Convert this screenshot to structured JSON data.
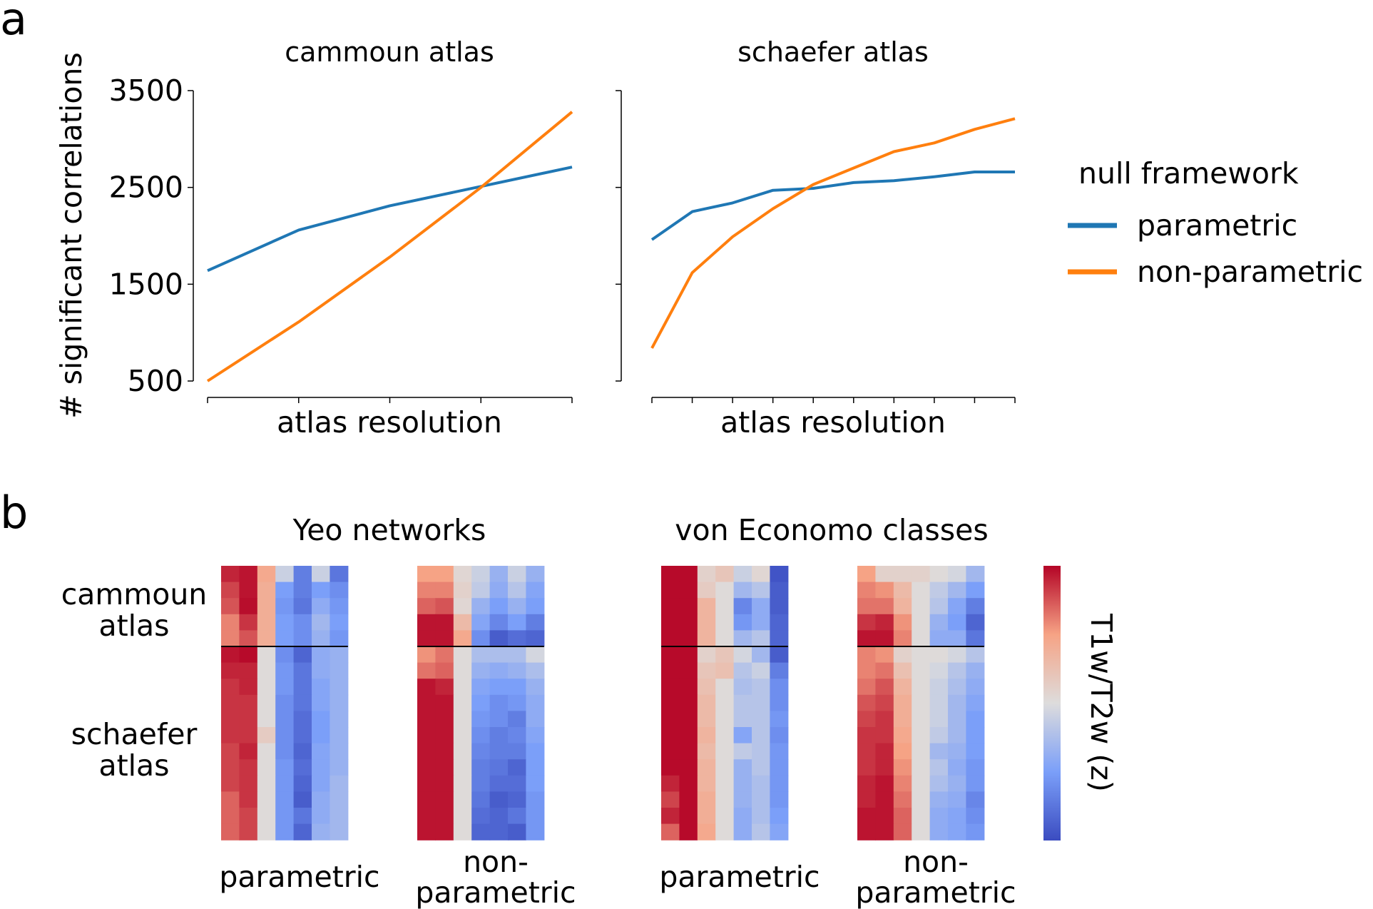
{
  "panel_labels": {
    "a": "a",
    "b": "b"
  },
  "colors": {
    "parametric": "#1f77b4",
    "non_parametric": "#ff7f0e"
  },
  "legend": {
    "title": "null framework",
    "items": [
      {
        "label": "parametric",
        "color": "#1f77b4"
      },
      {
        "label": "non-parametric",
        "color": "#ff7f0e"
      }
    ]
  },
  "heatmap_labels": {
    "section_titles": [
      "Yeo networks",
      "von Economo classes"
    ],
    "row_labels": {
      "cammoun": [
        "cammoun",
        "atlas"
      ],
      "schaefer": [
        "schaefer",
        "atlas"
      ]
    },
    "column_labels": {
      "parametric": [
        "parametric"
      ],
      "non_parametric": [
        "non-",
        "parametric"
      ]
    },
    "colorbar_label": "T1w/T2w (z)"
  },
  "chart_data": [
    {
      "type": "line",
      "title": "cammoun atlas",
      "xlabel": "atlas resolution",
      "ylabel": "# significant correlations",
      "yticks": [
        500,
        1500,
        2500,
        3500
      ],
      "ylim": [
        500,
        3500
      ],
      "x": [
        1,
        2,
        3,
        4,
        5
      ],
      "series": [
        {
          "name": "parametric",
          "values": [
            1640,
            2060,
            2310,
            2510,
            2710
          ]
        },
        {
          "name": "non-parametric",
          "values": [
            500,
            1110,
            1780,
            2500,
            3280
          ]
        }
      ]
    },
    {
      "type": "line",
      "title": "schaefer atlas",
      "xlabel": "atlas resolution",
      "ylabel": "",
      "ylim": [
        500,
        3500
      ],
      "x": [
        1,
        2,
        3,
        4,
        5,
        6,
        7,
        8,
        9,
        10
      ],
      "series": [
        {
          "name": "parametric",
          "values": [
            1960,
            2250,
            2340,
            2470,
            2490,
            2550,
            2570,
            2610,
            2660,
            2660
          ]
        },
        {
          "name": "non-parametric",
          "values": [
            840,
            1620,
            1990,
            2280,
            2530,
            2700,
            2870,
            2960,
            3100,
            3210
          ]
        }
      ]
    },
    {
      "type": "heatmap",
      "title": "Yeo networks",
      "colormap": "coolwarm",
      "groups": [
        {
          "name": "parametric",
          "rows": [
            [
              0.9,
              0.95,
              0.45,
              -0.1,
              -0.7,
              -0.1,
              -0.75
            ],
            [
              0.8,
              0.95,
              0.4,
              -0.5,
              -0.7,
              -0.5,
              -0.6
            ],
            [
              0.75,
              0.97,
              0.4,
              -0.55,
              -0.75,
              -0.4,
              -0.55
            ],
            [
              0.6,
              0.85,
              0.4,
              -0.5,
              -0.6,
              -0.3,
              -0.5
            ],
            [
              0.6,
              0.75,
              0.4,
              -0.5,
              -0.6,
              -0.35,
              -0.55
            ],
            [
              0.95,
              0.98,
              0.02,
              -0.6,
              -0.85,
              -0.4,
              -0.35
            ],
            [
              0.9,
              0.9,
              0.02,
              -0.55,
              -0.75,
              -0.4,
              -0.35
            ],
            [
              0.85,
              0.9,
              0.02,
              -0.55,
              -0.75,
              -0.45,
              -0.35
            ],
            [
              0.85,
              0.85,
              0.02,
              -0.6,
              -0.75,
              -0.45,
              -0.35
            ],
            [
              0.85,
              0.85,
              0.02,
              -0.6,
              -0.8,
              -0.5,
              -0.35
            ],
            [
              0.85,
              0.85,
              0.15,
              -0.6,
              -0.8,
              -0.5,
              -0.35
            ],
            [
              0.8,
              0.9,
              0.02,
              -0.6,
              -0.85,
              -0.45,
              -0.35
            ],
            [
              0.8,
              0.85,
              0.02,
              -0.55,
              -0.8,
              -0.45,
              -0.35
            ],
            [
              0.8,
              0.85,
              0.02,
              -0.55,
              -0.85,
              -0.45,
              -0.3
            ],
            [
              0.7,
              0.85,
              0.02,
              -0.55,
              -0.9,
              -0.4,
              -0.3
            ],
            [
              0.7,
              0.8,
              0.02,
              -0.55,
              -0.75,
              -0.4,
              -0.3
            ],
            [
              0.7,
              0.8,
              0.02,
              -0.55,
              -0.85,
              -0.35,
              -0.3
            ]
          ]
        },
        {
          "name": "non-parametric",
          "rows": [
            [
              0.5,
              0.5,
              0.05,
              -0.1,
              -0.35,
              -0.1,
              -0.35
            ],
            [
              0.6,
              0.6,
              0.1,
              -0.15,
              -0.4,
              -0.2,
              -0.45
            ],
            [
              0.7,
              0.75,
              0.05,
              -0.35,
              -0.5,
              -0.35,
              -0.5
            ],
            [
              0.95,
              0.95,
              0.3,
              -0.45,
              -0.65,
              -0.5,
              -0.7
            ],
            [
              0.95,
              0.95,
              0.45,
              -0.6,
              -0.9,
              -0.8,
              -0.85
            ],
            [
              0.55,
              0.65,
              0.02,
              -0.25,
              -0.25,
              -0.25,
              -0.05
            ],
            [
              0.65,
              0.7,
              0.02,
              -0.35,
              -0.4,
              -0.35,
              -0.25
            ],
            [
              0.95,
              0.9,
              0.02,
              -0.45,
              -0.5,
              -0.5,
              -0.35
            ],
            [
              0.95,
              0.95,
              0.02,
              -0.5,
              -0.6,
              -0.55,
              -0.4
            ],
            [
              0.95,
              0.95,
              0.02,
              -0.55,
              -0.6,
              -0.7,
              -0.4
            ],
            [
              0.95,
              0.95,
              0.02,
              -0.6,
              -0.7,
              -0.65,
              -0.45
            ],
            [
              0.95,
              0.95,
              0.02,
              -0.65,
              -0.7,
              -0.7,
              -0.5
            ],
            [
              0.95,
              0.95,
              0.02,
              -0.7,
              -0.75,
              -0.85,
              -0.5
            ],
            [
              0.95,
              0.95,
              0.02,
              -0.7,
              -0.8,
              -0.8,
              -0.5
            ],
            [
              0.95,
              0.95,
              0.02,
              -0.75,
              -0.9,
              -0.85,
              -0.55
            ],
            [
              0.95,
              0.95,
              0.02,
              -0.8,
              -0.85,
              -0.75,
              -0.55
            ],
            [
              0.95,
              0.95,
              0.02,
              -0.85,
              -0.85,
              -0.9,
              -0.55
            ]
          ]
        }
      ]
    },
    {
      "type": "heatmap",
      "title": "von Economo classes",
      "colormap": "coolwarm",
      "groups": [
        {
          "name": "parametric",
          "rows": [
            [
              0.98,
              0.98,
              0.1,
              0.2,
              -0.1,
              0.05,
              -0.95
            ],
            [
              0.98,
              0.98,
              0.15,
              0.02,
              -0.3,
              -0.2,
              -0.9
            ],
            [
              0.98,
              0.98,
              0.35,
              0.02,
              -0.65,
              -0.4,
              -0.9
            ],
            [
              0.98,
              0.98,
              0.35,
              0.02,
              -0.55,
              -0.4,
              -0.85
            ],
            [
              0.98,
              0.98,
              0.35,
              0.02,
              -0.3,
              -0.2,
              -0.85
            ],
            [
              0.98,
              0.98,
              0.1,
              0.2,
              -0.05,
              -0.3,
              -0.9
            ],
            [
              0.98,
              0.98,
              0.2,
              0.25,
              -0.2,
              -0.1,
              -0.7
            ],
            [
              0.98,
              0.98,
              0.25,
              0.02,
              -0.25,
              -0.2,
              -0.6
            ],
            [
              0.98,
              0.98,
              0.3,
              0.02,
              -0.2,
              -0.2,
              -0.6
            ],
            [
              0.98,
              0.98,
              0.3,
              0.02,
              -0.2,
              -0.2,
              -0.55
            ],
            [
              0.98,
              0.98,
              0.35,
              0.02,
              -0.45,
              -0.2,
              -0.6
            ],
            [
              0.98,
              0.98,
              0.3,
              0.02,
              -0.15,
              -0.2,
              -0.55
            ],
            [
              0.98,
              0.98,
              0.35,
              0.02,
              -0.35,
              -0.2,
              -0.55
            ],
            [
              0.9,
              0.98,
              0.35,
              0.02,
              -0.35,
              -0.25,
              -0.55
            ],
            [
              0.8,
              0.98,
              0.4,
              0.02,
              -0.35,
              -0.25,
              -0.55
            ],
            [
              0.9,
              0.98,
              0.4,
              0.02,
              -0.4,
              -0.25,
              -0.5
            ],
            [
              0.7,
              0.98,
              0.45,
              0.02,
              -0.4,
              -0.2,
              -0.45
            ]
          ]
        },
        {
          "name": "non-parametric",
          "rows": [
            [
              0.5,
              0.1,
              0.1,
              0.1,
              0.02,
              -0.05,
              -0.3
            ],
            [
              0.6,
              0.55,
              0.3,
              0.02,
              -0.15,
              -0.3,
              -0.5
            ],
            [
              0.65,
              0.65,
              0.35,
              0.02,
              -0.2,
              -0.45,
              -0.7
            ],
            [
              0.85,
              0.9,
              0.55,
              0.02,
              -0.35,
              -0.5,
              -0.85
            ],
            [
              0.95,
              0.95,
              0.6,
              0.02,
              -0.4,
              -0.4,
              -0.75
            ],
            [
              0.6,
              0.55,
              0.1,
              0.02,
              0.02,
              -0.05,
              -0.2
            ],
            [
              0.6,
              0.65,
              0.25,
              0.02,
              -0.05,
              -0.2,
              -0.35
            ],
            [
              0.65,
              0.75,
              0.35,
              0.02,
              -0.1,
              -0.25,
              -0.4
            ],
            [
              0.75,
              0.8,
              0.4,
              0.02,
              -0.1,
              -0.3,
              -0.45
            ],
            [
              0.8,
              0.85,
              0.4,
              0.02,
              -0.1,
              -0.3,
              -0.5
            ],
            [
              0.85,
              0.85,
              0.45,
              0.02,
              -0.15,
              -0.3,
              -0.5
            ],
            [
              0.85,
              0.9,
              0.5,
              0.02,
              -0.3,
              -0.35,
              -0.5
            ],
            [
              0.85,
              0.9,
              0.55,
              0.02,
              -0.2,
              -0.4,
              -0.55
            ],
            [
              0.9,
              0.95,
              0.6,
              0.02,
              -0.25,
              -0.35,
              -0.55
            ],
            [
              0.9,
              0.95,
              0.65,
              0.02,
              -0.35,
              -0.4,
              -0.65
            ],
            [
              0.95,
              0.95,
              0.7,
              0.02,
              -0.4,
              -0.45,
              -0.6
            ],
            [
              0.95,
              0.95,
              0.7,
              0.02,
              -0.4,
              -0.45,
              -0.55
            ]
          ]
        }
      ]
    }
  ]
}
